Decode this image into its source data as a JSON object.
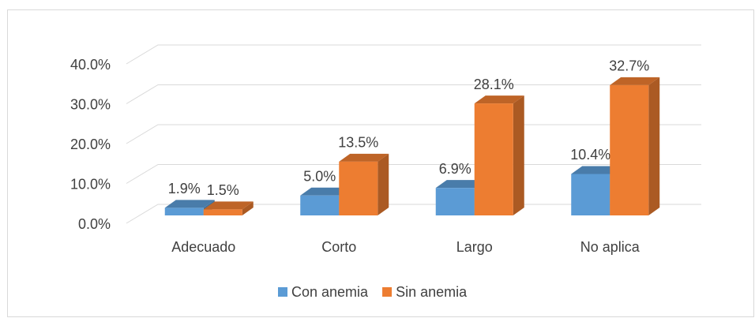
{
  "chart_data": {
    "type": "bar3d",
    "categories": [
      "Adecuado",
      "Corto",
      "Largo",
      "No aplica"
    ],
    "series": [
      {
        "name": "Con anemia",
        "color": "#5b9bd5",
        "values": [
          1.9,
          5.0,
          6.9,
          10.4
        ],
        "value_labels": [
          "1.9%",
          "5.0%",
          "6.9%",
          "10.4%"
        ]
      },
      {
        "name": "Sin anemia",
        "color": "#ed7d31",
        "values": [
          1.5,
          13.5,
          28.1,
          32.7
        ],
        "value_labels": [
          "1.5%",
          "13.5%",
          "28.1%",
          "32.7%"
        ]
      }
    ],
    "ylim": [
      0,
      40
    ],
    "yticks": [
      {
        "value": 0,
        "label": "0.0%"
      },
      {
        "value": 10,
        "label": "10.0%"
      },
      {
        "value": 20,
        "label": "20.0%"
      },
      {
        "value": 30,
        "label": "30.0%"
      },
      {
        "value": 40,
        "label": "40.0%"
      }
    ],
    "grid": true,
    "legend": "bottom"
  }
}
